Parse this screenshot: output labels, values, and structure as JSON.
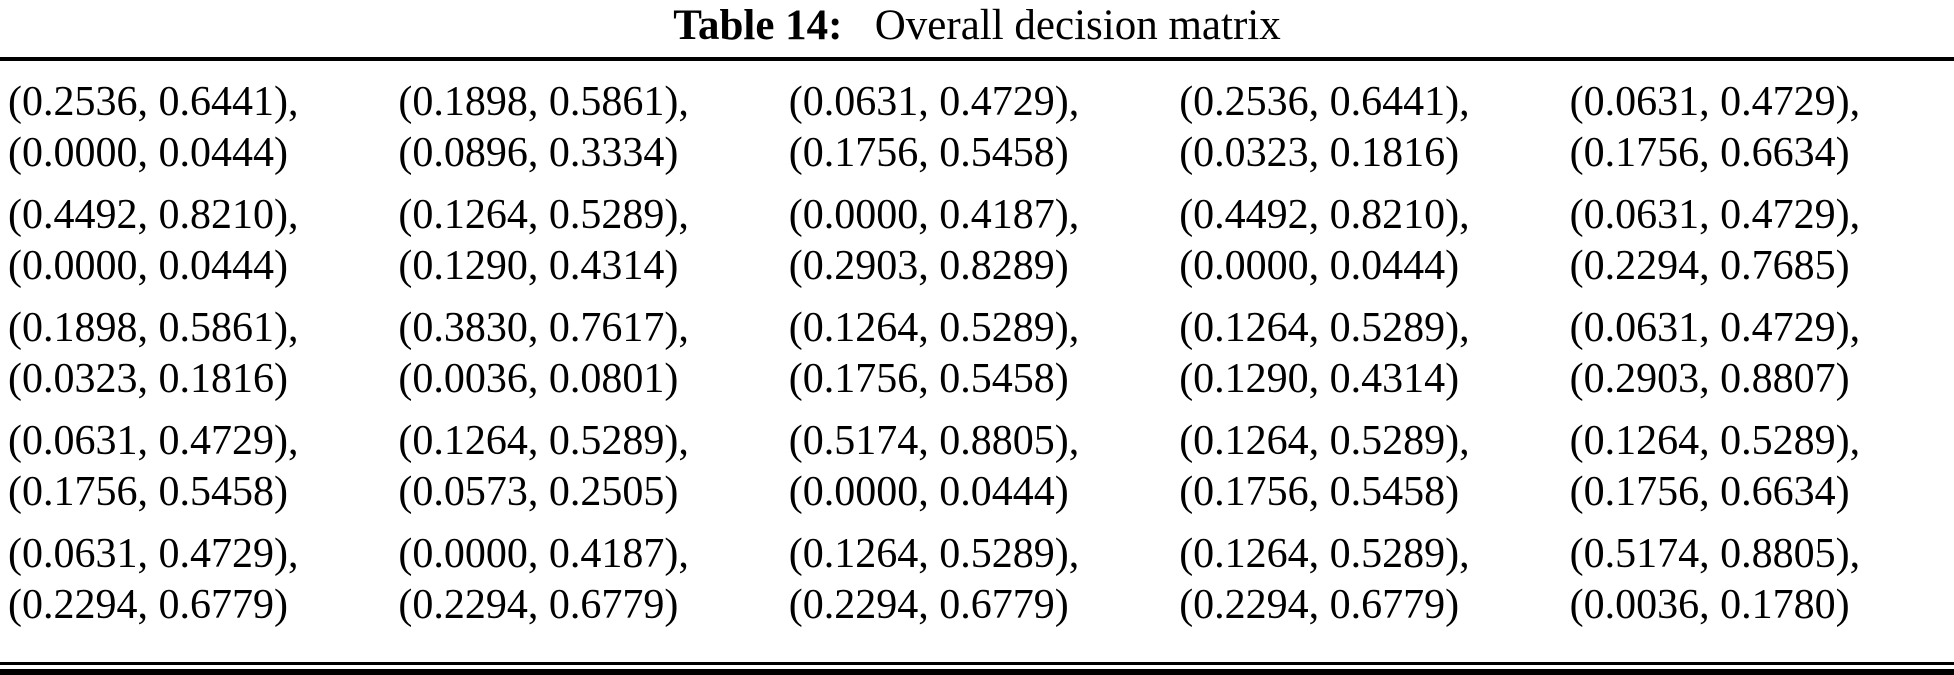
{
  "title": {
    "label": "Table 14:",
    "caption": "Overall decision matrix"
  },
  "matrix": {
    "rows": [
      {
        "cells": [
          {
            "line1": "(0.2536, 0.6441),",
            "line2": "(0.0000, 0.0444)"
          },
          {
            "line1": "(0.1898, 0.5861),",
            "line2": "(0.0896, 0.3334)"
          },
          {
            "line1": "(0.0631, 0.4729),",
            "line2": "(0.1756, 0.5458)"
          },
          {
            "line1": "(0.2536, 0.6441),",
            "line2": "(0.0323, 0.1816)"
          },
          {
            "line1": "(0.0631, 0.4729),",
            "line2": "(0.1756, 0.6634)"
          }
        ]
      },
      {
        "cells": [
          {
            "line1": "(0.4492, 0.8210),",
            "line2": "(0.0000, 0.0444)"
          },
          {
            "line1": "(0.1264, 0.5289),",
            "line2": "(0.1290, 0.4314)"
          },
          {
            "line1": "(0.0000, 0.4187),",
            "line2": "(0.2903, 0.8289)"
          },
          {
            "line1": "(0.4492, 0.8210),",
            "line2": "(0.0000, 0.0444)"
          },
          {
            "line1": "(0.0631, 0.4729),",
            "line2": "(0.2294, 0.7685)"
          }
        ]
      },
      {
        "cells": [
          {
            "line1": "(0.1898, 0.5861),",
            "line2": "(0.0323, 0.1816)"
          },
          {
            "line1": "(0.3830, 0.7617),",
            "line2": "(0.0036, 0.0801)"
          },
          {
            "line1": "(0.1264, 0.5289),",
            "line2": "(0.1756, 0.5458)"
          },
          {
            "line1": "(0.1264, 0.5289),",
            "line2": "(0.1290, 0.4314)"
          },
          {
            "line1": "(0.0631, 0.4729),",
            "line2": "(0.2903, 0.8807)"
          }
        ]
      },
      {
        "cells": [
          {
            "line1": "(0.0631, 0.4729),",
            "line2": "(0.1756, 0.5458)"
          },
          {
            "line1": "(0.1264, 0.5289),",
            "line2": "(0.0573, 0.2505)"
          },
          {
            "line1": "(0.5174, 0.8805),",
            "line2": "(0.0000, 0.0444)"
          },
          {
            "line1": "(0.1264, 0.5289),",
            "line2": "(0.1756, 0.5458)"
          },
          {
            "line1": "(0.1264, 0.5289),",
            "line2": "(0.1756, 0.6634)"
          }
        ]
      },
      {
        "cells": [
          {
            "line1": "(0.0631, 0.4729),",
            "line2": "(0.2294, 0.6779)"
          },
          {
            "line1": "(0.0000, 0.4187),",
            "line2": "(0.2294, 0.6779)"
          },
          {
            "line1": "(0.1264, 0.5289),",
            "line2": "(0.2294, 0.6779)"
          },
          {
            "line1": "(0.1264, 0.5289),",
            "line2": "(0.2294, 0.6779)"
          },
          {
            "line1": "(0.5174, 0.8805),",
            "line2": "(0.0036, 0.1780)"
          }
        ]
      }
    ]
  },
  "colors": {
    "text": "#000000",
    "background": "#ffffff",
    "rule": "#000000"
  }
}
